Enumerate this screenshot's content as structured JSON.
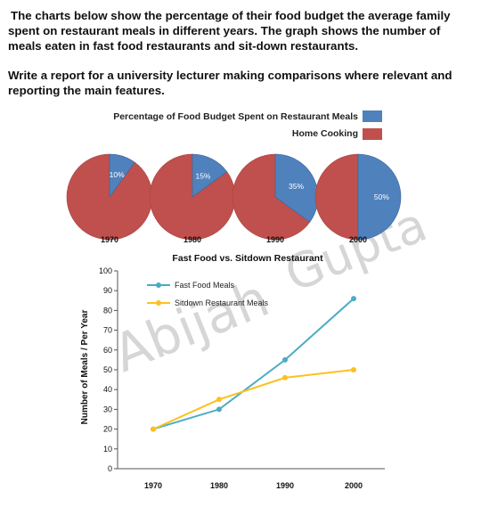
{
  "prompt": {
    "para1": "The charts below show the percentage of their food budget the average family spent on restaurant meals in different years. The graph shows the number of meals eaten in fast food restaurants and sit-down restaurants.",
    "para2": "Write a report for a university lecturer making comparisons where relevant and reporting the main features."
  },
  "watermark": {
    "word1": "Abijah",
    "word2": "Gupta"
  },
  "colors": {
    "restaurant": "#4f81bd",
    "home": "#c0504d",
    "fast_food": "#4aacc6",
    "sitdown": "#fdc020"
  },
  "chart_data": [
    {
      "type": "pie",
      "legend": [
        "Percentage of Food Budget Spent on Restaurant Meals",
        "Home Cooking"
      ],
      "legend_position": "top-right",
      "pies": [
        {
          "year": "1970",
          "restaurant": 10,
          "home": 90,
          "label": "10%"
        },
        {
          "year": "1980",
          "restaurant": 15,
          "home": 85,
          "label": "15%"
        },
        {
          "year": "1990",
          "restaurant": 35,
          "home": 65,
          "label": "35%"
        },
        {
          "year": "2000",
          "restaurant": 50,
          "home": 50,
          "label": "50%"
        }
      ]
    },
    {
      "type": "line",
      "title": "Fast Food vs. Sitdown Restaurant",
      "xlabel": "",
      "ylabel": "Number of Meals / Per Year",
      "ylim": [
        0,
        100
      ],
      "yticks": [
        0,
        10,
        20,
        30,
        40,
        50,
        60,
        70,
        80,
        90,
        100
      ],
      "x": [
        "1970",
        "1980",
        "1990",
        "2000"
      ],
      "grid": false,
      "legend_position": "top-left",
      "series": [
        {
          "name": "Fast Food Meals",
          "values": [
            20,
            30,
            55,
            86
          ]
        },
        {
          "name": "Sitdown Restaurant  Meals",
          "values": [
            20,
            35,
            46,
            50
          ]
        }
      ]
    }
  ]
}
